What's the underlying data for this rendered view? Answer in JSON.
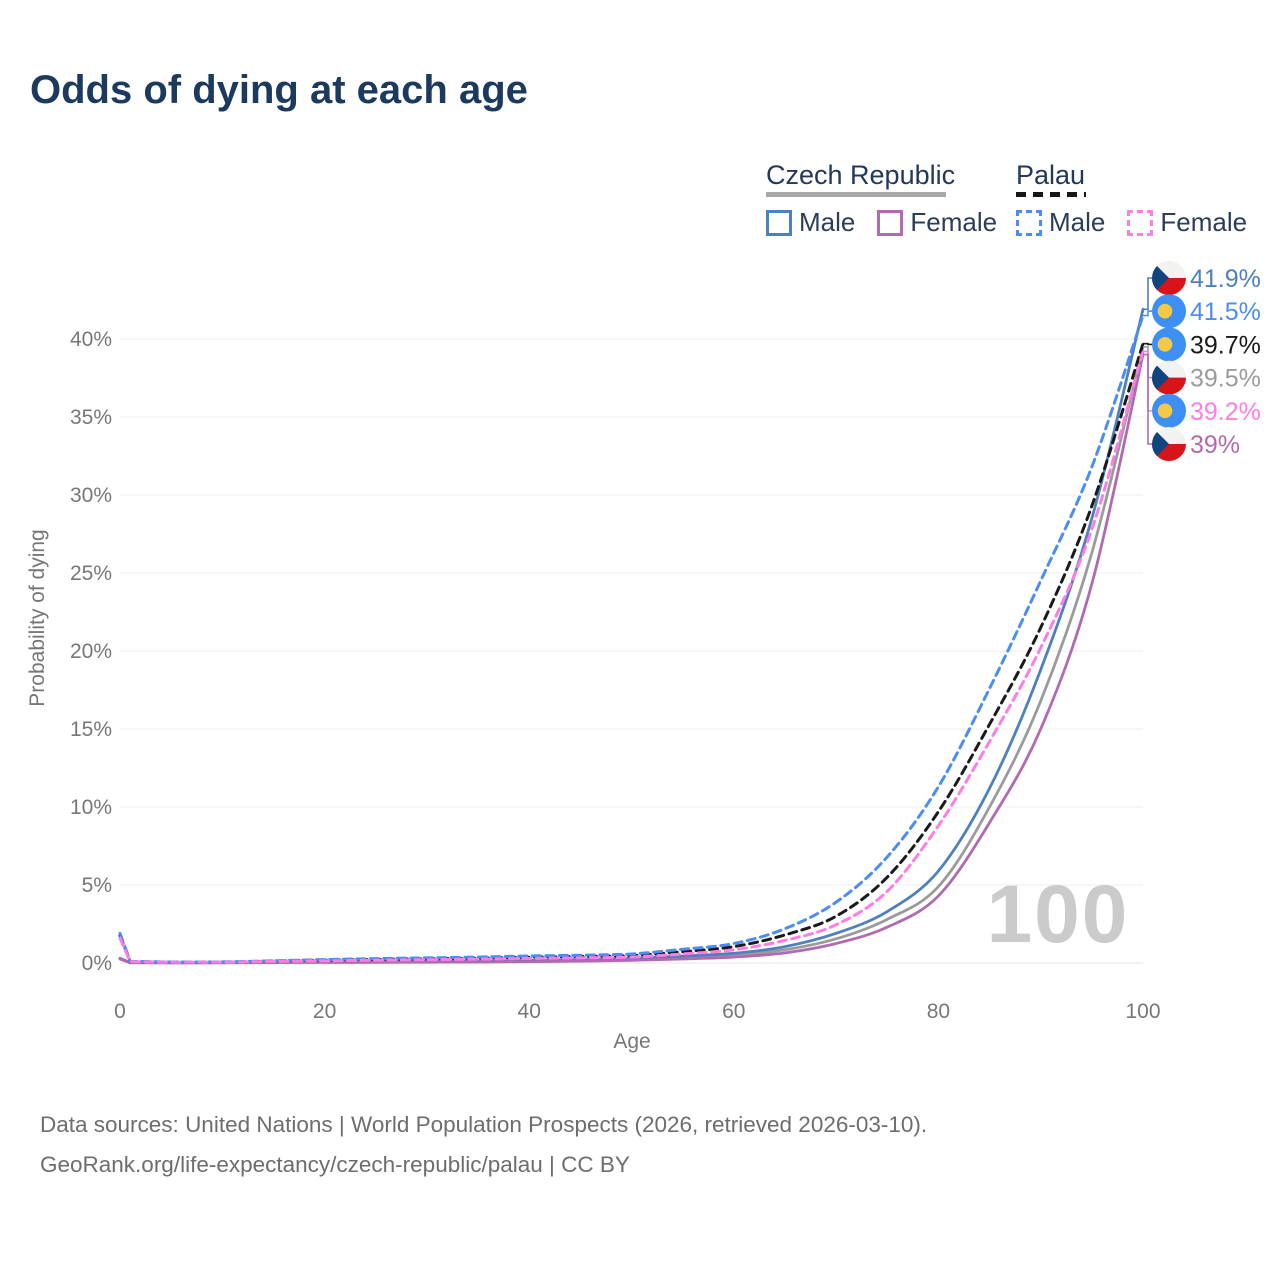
{
  "page": {
    "title": "Odds of dying at each age"
  },
  "legend": {
    "groups": [
      {
        "label": "Czech Republic",
        "line_style": "solid",
        "underline_color": "#a9a9a9",
        "items": [
          {
            "label": "Male",
            "color": "#4e7fbe"
          },
          {
            "label": "Female",
            "color": "#b16ab1"
          }
        ]
      },
      {
        "label": "Palau",
        "line_style": "dashed",
        "underline_color": "#161616",
        "items": [
          {
            "label": "Male",
            "color": "#4b8cf5"
          },
          {
            "label": "Female",
            "color": "#ff7ce4"
          }
        ]
      }
    ]
  },
  "chart_data": {
    "type": "line",
    "title": "Odds of dying at each age",
    "xlabel": "Age",
    "ylabel": "Probability of dying",
    "xlim": [
      0,
      100
    ],
    "ylim": [
      0,
      44
    ],
    "x_ticks": [
      0,
      20,
      40,
      60,
      80,
      100
    ],
    "y_ticks": [
      "0%",
      "5%",
      "10%",
      "15%",
      "20%",
      "25%",
      "30%",
      "35%",
      "40%"
    ],
    "grid": true,
    "legend_position": "top-right",
    "hover_age_watermark": "100",
    "ages": [
      0,
      1,
      5,
      10,
      15,
      20,
      25,
      30,
      35,
      40,
      45,
      50,
      55,
      60,
      65,
      70,
      75,
      80,
      85,
      90,
      95,
      100
    ],
    "series": [
      {
        "id": "czech-male",
        "name": "Czech Republic Male",
        "color": "#4e7fbe",
        "dash": false,
        "values": [
          0.3,
          0.03,
          0.02,
          0.02,
          0.06,
          0.09,
          0.1,
          0.11,
          0.13,
          0.16,
          0.22,
          0.3,
          0.45,
          0.62,
          1.05,
          1.9,
          3.3,
          5.9,
          11.2,
          18.8,
          28.5,
          41.9
        ]
      },
      {
        "id": "czech-female",
        "name": "Czech Republic Female",
        "color": "#b16ab1",
        "dash": false,
        "values": [
          0.25,
          0.02,
          0.01,
          0.015,
          0.025,
          0.035,
          0.04,
          0.05,
          0.06,
          0.08,
          0.12,
          0.17,
          0.26,
          0.38,
          0.65,
          1.25,
          2.3,
          4.3,
          9.0,
          15.0,
          24.3,
          39.0
        ]
      },
      {
        "id": "czech-avg",
        "name": "Czech Republic Total",
        "color": "#9b9b9b",
        "dash": false,
        "values": [
          0.27,
          0.025,
          0.015,
          0.018,
          0.04,
          0.06,
          0.07,
          0.08,
          0.09,
          0.12,
          0.17,
          0.24,
          0.36,
          0.5,
          0.85,
          1.55,
          2.8,
          4.9,
          10.0,
          16.8,
          26.3,
          39.5
        ]
      },
      {
        "id": "palau-male",
        "name": "Palau Male",
        "color": "#4b8cf5",
        "dash": true,
        "values": [
          1.9,
          0.1,
          0.06,
          0.07,
          0.14,
          0.22,
          0.28,
          0.33,
          0.38,
          0.45,
          0.5,
          0.58,
          0.88,
          1.25,
          2.2,
          3.9,
          6.8,
          11.3,
          17.6,
          24.5,
          31.8,
          41.5
        ]
      },
      {
        "id": "palau-female",
        "name": "Palau Female",
        "color": "#ff7ce4",
        "dash": true,
        "values": [
          1.6,
          0.08,
          0.05,
          0.05,
          0.1,
          0.14,
          0.18,
          0.21,
          0.25,
          0.29,
          0.33,
          0.38,
          0.58,
          0.85,
          1.45,
          2.45,
          4.6,
          8.8,
          14.2,
          20.2,
          27.8,
          39.2
        ]
      },
      {
        "id": "palau-avg",
        "name": "Palau Total",
        "color": "#1a1a1a",
        "dash": true,
        "values": [
          1.75,
          0.09,
          0.055,
          0.06,
          0.12,
          0.18,
          0.23,
          0.27,
          0.31,
          0.37,
          0.42,
          0.48,
          0.72,
          1.05,
          1.8,
          3.0,
          5.5,
          9.7,
          15.3,
          21.5,
          29.3,
          39.7
        ]
      }
    ],
    "draw_order": [
      "czech-avg",
      "czech-male",
      "czech-female",
      "palau-avg",
      "palau-male",
      "palau-female"
    ],
    "end_labels": [
      {
        "series": "czech-male",
        "text": "41.9%",
        "flag": "czech"
      },
      {
        "series": "palau-male",
        "text": "41.5%",
        "flag": "palau"
      },
      {
        "series": "palau-avg",
        "text": "39.7%",
        "flag": "palau"
      },
      {
        "series": "czech-avg",
        "text": "39.5%",
        "flag": "czech"
      },
      {
        "series": "palau-female",
        "text": "39.2%",
        "flag": "palau"
      },
      {
        "series": "czech-female",
        "text": "39%",
        "flag": "czech"
      }
    ]
  },
  "footer": {
    "line1": "Data sources: United Nations | World Population Prospects (2026, retrieved 2026-03-10).",
    "line2": "GeoRank.org/life-expectancy/czech-republic/palau | CC BY"
  }
}
